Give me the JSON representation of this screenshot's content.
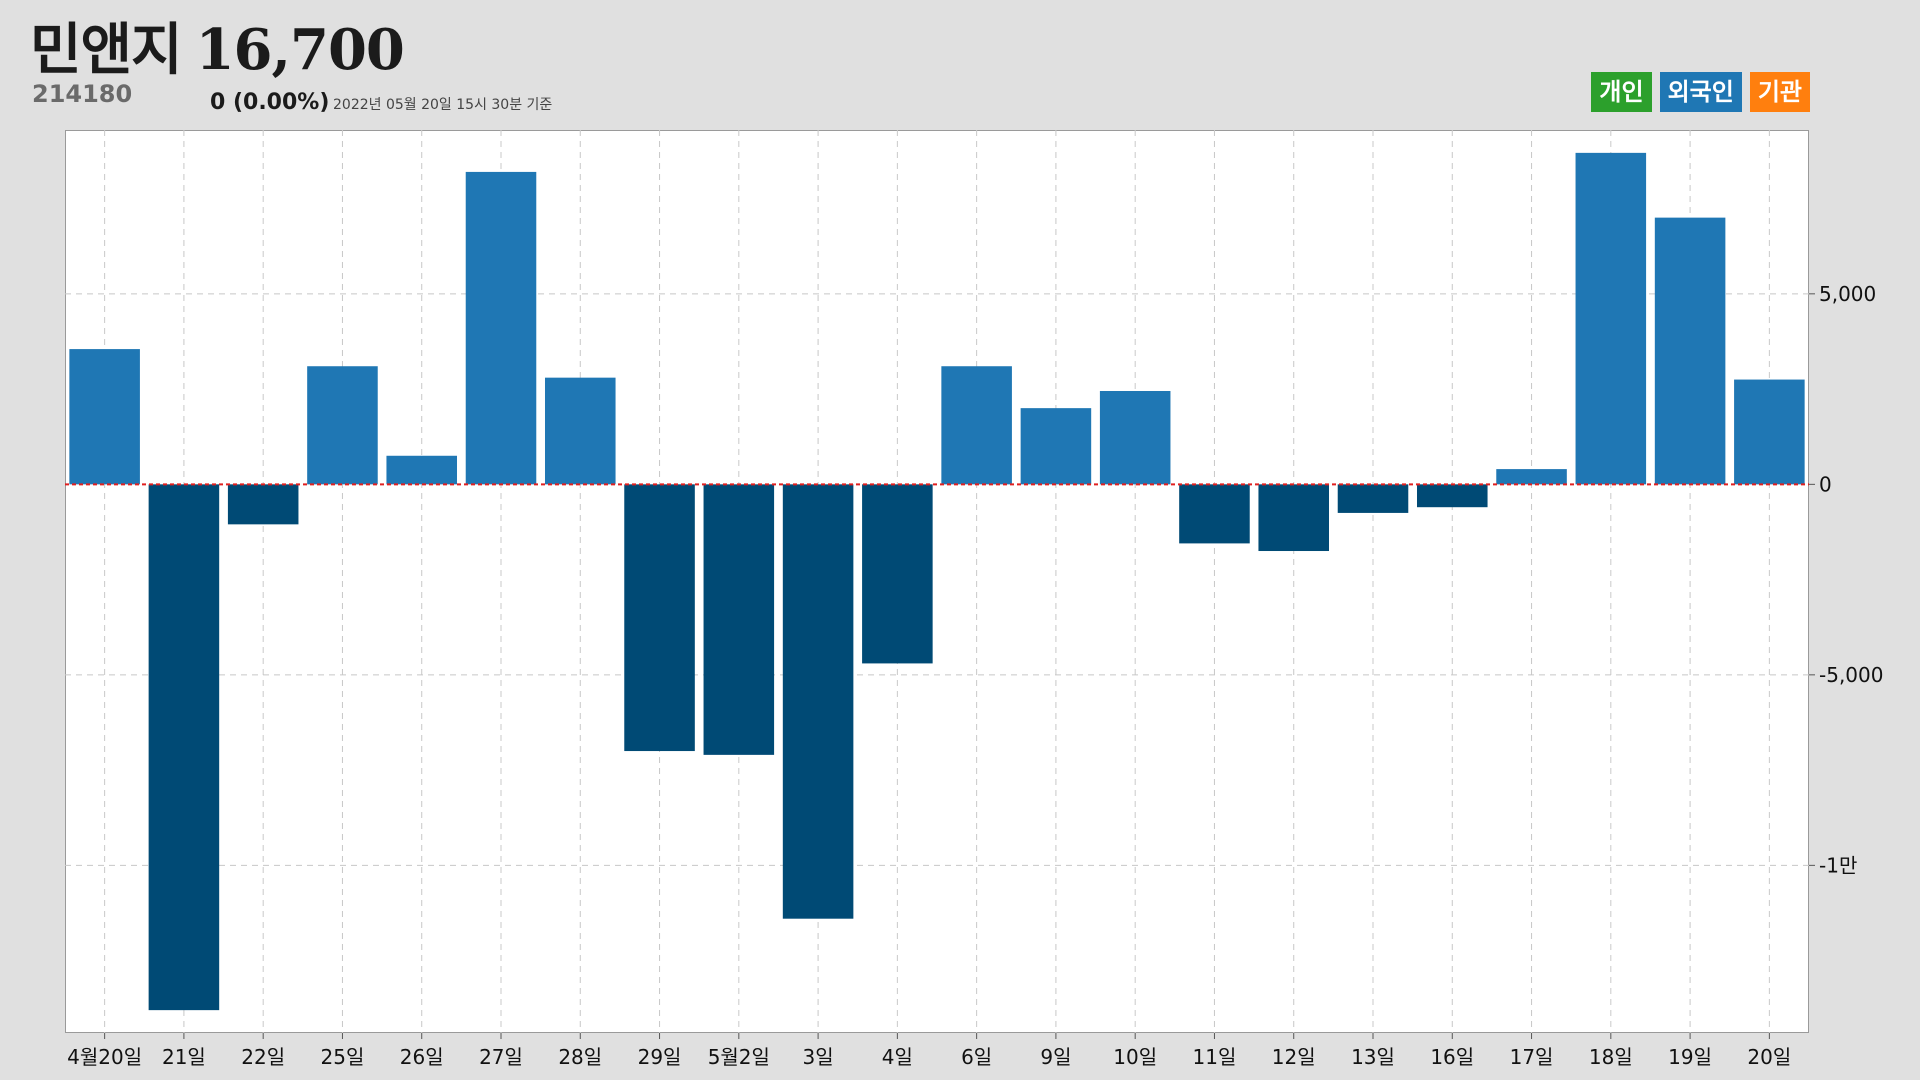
{
  "header": {
    "stock_name": "민앤지",
    "price": "16,700",
    "stock_code": "214180",
    "change": "0 (0.00%)",
    "as_of": "2022년 05월 20일 15시 30분 기준"
  },
  "legend": [
    {
      "label": "개인",
      "color": "#2ca02c"
    },
    {
      "label": "외국인",
      "color": "#1f77b4"
    },
    {
      "label": "기관",
      "color": "#ff7f0e"
    }
  ],
  "chart_data": {
    "type": "bar",
    "title": "",
    "xlabel": "",
    "ylabel": "",
    "categories": [
      "4월20일",
      "21일",
      "22일",
      "25일",
      "26일",
      "27일",
      "28일",
      "29일",
      "5월2일",
      "3일",
      "4일",
      "6일",
      "9일",
      "10일",
      "11일",
      "12일",
      "13일",
      "16일",
      "17일",
      "18일",
      "19일",
      "20일"
    ],
    "series": [
      {
        "values": [
          3550,
          -13800,
          -1050,
          3100,
          750,
          8200,
          2800,
          -7000,
          -7100,
          -11400,
          -4700,
          3100,
          2000,
          2450,
          -1550,
          -1750,
          -750,
          -600,
          400,
          8700,
          7000,
          2750
        ]
      }
    ],
    "ylim": [
      -14400,
      9300
    ],
    "yticks": [
      5000,
      0,
      -5000,
      -10000
    ],
    "ytick_labels": [
      "5,000",
      "0",
      "-5,000",
      "-1만"
    ],
    "positive_color": "#1f77b4",
    "negative_color": "#004a75",
    "zero_line_color": "#e02020",
    "grid": true,
    "y_axis_position": "right"
  }
}
